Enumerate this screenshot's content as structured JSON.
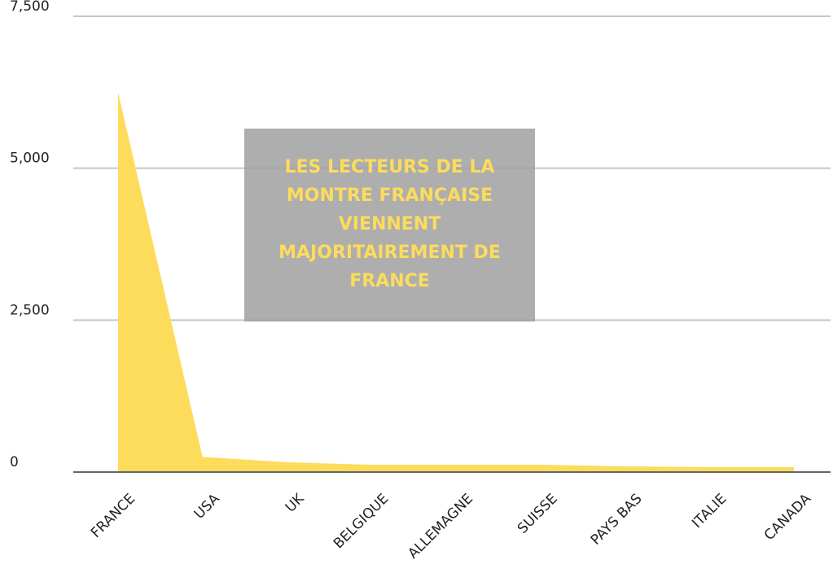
{
  "chart_data": {
    "type": "area",
    "categories": [
      "FRANCE",
      "USA",
      "UK",
      "BELGIQUE",
      "ALLEMAGNE",
      "SUISSE",
      "PAYS BAS",
      "ITALIE",
      "CANADA"
    ],
    "values": [
      6250,
      250,
      160,
      120,
      120,
      120,
      95,
      80,
      80
    ],
    "color": "#fddc5c",
    "ylim": [
      0,
      7500
    ],
    "yticks": [
      0,
      {
        "value": 2500,
        "label": "2,500"
      },
      {
        "value": 5000,
        "label": "5,000"
      },
      {
        "value": 7500,
        "label": "7,500"
      }
    ],
    "grid": true,
    "annotation": "LES LECTEURS DE LA MONTRE FRANÇAISE VIENNENT MAJORITAIREMENT DE FRANCE"
  }
}
